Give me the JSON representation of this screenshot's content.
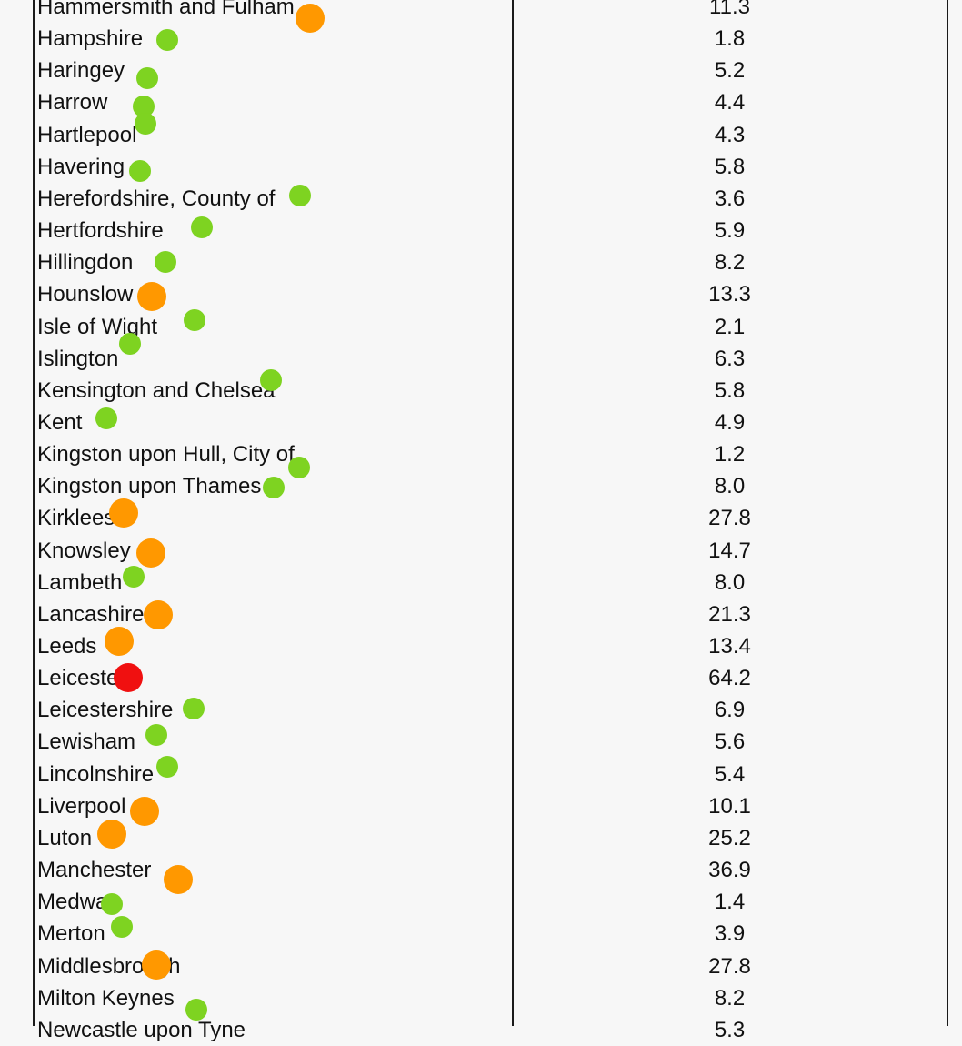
{
  "colors": {
    "low": "#7ed321",
    "medium": "#ff9800",
    "high": "#f01010"
  },
  "rows": [
    {
      "name": "Hammersmith and Fulham",
      "value": "11.3",
      "level": "medium"
    },
    {
      "name": "Hampshire",
      "value": "1.8",
      "level": "low"
    },
    {
      "name": "Haringey",
      "value": "5.2",
      "level": "low"
    },
    {
      "name": "Harrow",
      "value": "4.4",
      "level": "low"
    },
    {
      "name": "Hartlepool",
      "value": "4.3",
      "level": "low"
    },
    {
      "name": "Havering",
      "value": "5.8",
      "level": "low"
    },
    {
      "name": "Herefordshire, County of",
      "value": "3.6",
      "level": "low"
    },
    {
      "name": "Hertfordshire",
      "value": "5.9",
      "level": "low"
    },
    {
      "name": "Hillingdon",
      "value": "8.2",
      "level": "low"
    },
    {
      "name": "Hounslow",
      "value": "13.3",
      "level": "medium"
    },
    {
      "name": "Isle of Wight",
      "value": "2.1",
      "level": "low"
    },
    {
      "name": "Islington",
      "value": "6.3",
      "level": "low"
    },
    {
      "name": "Kensington and Chelsea",
      "value": "5.8",
      "level": "low"
    },
    {
      "name": "Kent",
      "value": "4.9",
      "level": "low"
    },
    {
      "name": "Kingston upon Hull, City of",
      "value": "1.2",
      "level": "low"
    },
    {
      "name": "Kingston upon Thames",
      "value": "8.0",
      "level": "low"
    },
    {
      "name": "Kirklees",
      "value": "27.8",
      "level": "medium"
    },
    {
      "name": "Knowsley",
      "value": "14.7",
      "level": "medium"
    },
    {
      "name": "Lambeth",
      "value": "8.0",
      "level": "low"
    },
    {
      "name": "Lancashire",
      "value": "21.3",
      "level": "medium"
    },
    {
      "name": "Leeds",
      "value": "13.4",
      "level": "medium"
    },
    {
      "name": "Leicester",
      "value": "64.2",
      "level": "high"
    },
    {
      "name": "Leicestershire",
      "value": "6.9",
      "level": "low"
    },
    {
      "name": "Lewisham",
      "value": "5.6",
      "level": "low"
    },
    {
      "name": "Lincolnshire",
      "value": "5.4",
      "level": "low"
    },
    {
      "name": "Liverpool",
      "value": "10.1",
      "level": "medium"
    },
    {
      "name": "Luton",
      "value": "25.2",
      "level": "medium"
    },
    {
      "name": "Manchester",
      "value": "36.9",
      "level": "medium"
    },
    {
      "name": "Medway",
      "value": "1.4",
      "level": "low"
    },
    {
      "name": "Merton",
      "value": "3.9",
      "level": "low"
    },
    {
      "name": "Middlesbrough",
      "value": "27.8",
      "level": "medium"
    },
    {
      "name": "Milton Keynes",
      "value": "8.2",
      "level": "low"
    },
    {
      "name": "Newcastle upon Tyne",
      "value": "5.3",
      "level": ""
    }
  ]
}
